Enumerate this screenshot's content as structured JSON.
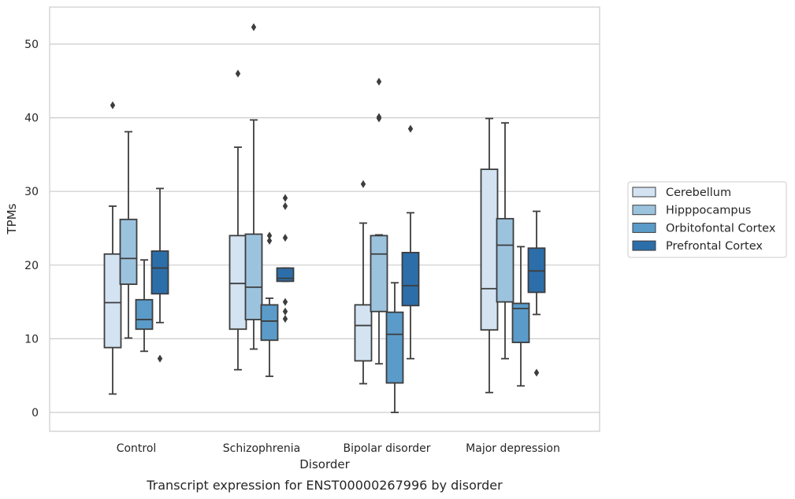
{
  "chart_data": {
    "type": "box",
    "caption": "Transcript expression for ENST00000267996 by disorder",
    "xlabel": "Disorder",
    "ylabel": "TPMs",
    "ylim": [
      -2.5,
      55
    ],
    "yticks": [
      0,
      10,
      20,
      30,
      40,
      50
    ],
    "grid": "horizontal",
    "legend_position": "right",
    "categories": [
      "Control",
      "Schizophrenia",
      "Bipolar disorder",
      "Major depression"
    ],
    "series": [
      {
        "name": "Cerebellum",
        "color": "#d3e3f2",
        "boxes": [
          {
            "whislo": 2.5,
            "q1": 8.8,
            "med": 14.9,
            "q3": 21.5,
            "whishi": 28.0,
            "fliers": [
              41.7
            ]
          },
          {
            "whislo": 5.8,
            "q1": 11.3,
            "med": 17.5,
            "q3": 24.0,
            "whishi": 36.0,
            "fliers": [
              46.0
            ]
          },
          {
            "whislo": 3.9,
            "q1": 7.0,
            "med": 11.8,
            "q3": 14.6,
            "whishi": 25.7,
            "fliers": [
              31.0
            ]
          },
          {
            "whislo": 2.7,
            "q1": 11.2,
            "med": 16.8,
            "q3": 33.0,
            "whishi": 39.9,
            "fliers": []
          }
        ]
      },
      {
        "name": "Hipppocampus",
        "color": "#9cc3de",
        "boxes": [
          {
            "whislo": 10.1,
            "q1": 17.4,
            "med": 20.9,
            "q3": 26.2,
            "whishi": 38.1,
            "fliers": []
          },
          {
            "whislo": 8.6,
            "q1": 12.6,
            "med": 17.0,
            "q3": 24.2,
            "whishi": 39.7,
            "fliers": [
              52.3
            ]
          },
          {
            "whislo": 6.6,
            "q1": 13.7,
            "med": 21.5,
            "q3": 24.0,
            "whishi": 24.1,
            "fliers": [
              39.9,
              40.1,
              44.9
            ]
          },
          {
            "whislo": 7.3,
            "q1": 15.0,
            "med": 22.7,
            "q3": 26.3,
            "whishi": 39.3,
            "fliers": []
          }
        ]
      },
      {
        "name": "Orbitofontal Cortex",
        "color": "#5a9bc9",
        "boxes": [
          {
            "whislo": 8.3,
            "q1": 11.3,
            "med": 12.6,
            "q3": 15.3,
            "whishi": 20.7,
            "fliers": []
          },
          {
            "whislo": 4.9,
            "q1": 9.8,
            "med": 12.4,
            "q3": 14.6,
            "whishi": 15.5,
            "fliers": [
              23.3,
              24.0
            ]
          },
          {
            "whislo": 0.0,
            "q1": 4.0,
            "med": 10.6,
            "q3": 13.6,
            "whishi": 17.6,
            "fliers": []
          },
          {
            "whislo": 3.6,
            "q1": 9.5,
            "med": 14.1,
            "q3": 14.8,
            "whishi": 22.5,
            "fliers": []
          }
        ]
      },
      {
        "name": "Prefrontal Cortex",
        "color": "#2c6ea9",
        "boxes": [
          {
            "whislo": 12.2,
            "q1": 16.1,
            "med": 19.6,
            "q3": 21.9,
            "whishi": 30.4,
            "fliers": [
              7.3
            ]
          },
          {
            "whislo": 17.8,
            "q1": 17.8,
            "med": 18.2,
            "q3": 19.6,
            "whishi": 19.6,
            "fliers": [
              12.7,
              13.7,
              15.0,
              23.7,
              28.0,
              29.1
            ]
          },
          {
            "whislo": 7.3,
            "q1": 14.5,
            "med": 17.2,
            "q3": 21.7,
            "whishi": 27.1,
            "fliers": [
              38.5
            ]
          },
          {
            "whislo": 13.3,
            "q1": 16.3,
            "med": 19.2,
            "q3": 22.3,
            "whishi": 27.3,
            "fliers": [
              5.4
            ]
          }
        ]
      }
    ]
  }
}
